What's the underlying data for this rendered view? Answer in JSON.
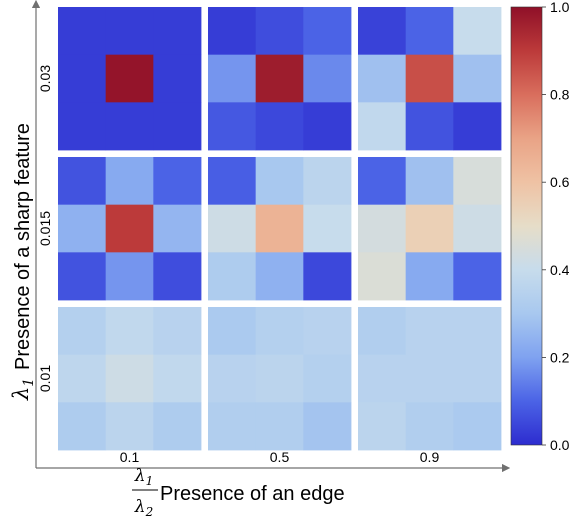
{
  "chart_data": {
    "type": "heatmap",
    "xlabel": "Presence of an edge",
    "xlabel_math": {
      "num": "λ1",
      "den": "λ2"
    },
    "ylabel": "Presence of a sharp feature",
    "ylabel_math": "λ1",
    "x_categories": [
      "0.1",
      "0.5",
      "0.9"
    ],
    "y_categories": [
      "0.03",
      "0.015",
      "0.01"
    ],
    "colorbar": {
      "range": [
        0.0,
        1.0
      ],
      "ticks": [
        "0.0",
        "0.2",
        "0.4",
        "0.6",
        "0.8",
        "1.0"
      ],
      "colormap": "coolwarm",
      "stops": [
        "#3b4cc0",
        "#5977e3",
        "#7b9ff9",
        "#9ebeff",
        "#c0d4f5",
        "#dddcdc",
        "#f2cbb7",
        "#f7ac8e",
        "#ee8468",
        "#d65244",
        "#b40426"
      ],
      "display_stops": [
        "#2d2ccf",
        "#4b63e6",
        "#7fa2f0",
        "#a8c8ef",
        "#c7dcec",
        "#e6ddc8",
        "#efc2a4",
        "#e9a386",
        "#d96e5d",
        "#bc3a3a",
        "#8f1028"
      ]
    },
    "grid": [
      [
        [
          [
            0.03,
            0.03,
            0.03
          ],
          [
            0.03,
            0.99,
            0.03
          ],
          [
            0.03,
            0.03,
            0.03
          ]
        ],
        [
          [
            0.03,
            0.06,
            0.1
          ],
          [
            0.18,
            0.97,
            0.16
          ],
          [
            0.08,
            0.05,
            0.03
          ]
        ],
        [
          [
            0.04,
            0.1,
            0.4
          ],
          [
            0.28,
            0.86,
            0.28
          ],
          [
            0.38,
            0.07,
            0.03
          ]
        ]
      ],
      [
        [
          [
            0.07,
            0.22,
            0.1
          ],
          [
            0.24,
            0.9,
            0.25
          ],
          [
            0.07,
            0.18,
            0.06
          ]
        ],
        [
          [
            0.09,
            0.3,
            0.36
          ],
          [
            0.42,
            0.65,
            0.4
          ],
          [
            0.32,
            0.24,
            0.05
          ]
        ],
        [
          [
            0.1,
            0.28,
            0.45
          ],
          [
            0.44,
            0.55,
            0.42
          ],
          [
            0.46,
            0.22,
            0.1
          ]
        ]
      ],
      [
        [
          [
            0.34,
            0.38,
            0.35
          ],
          [
            0.37,
            0.42,
            0.38
          ],
          [
            0.32,
            0.36,
            0.32
          ]
        ],
        [
          [
            0.31,
            0.34,
            0.35
          ],
          [
            0.35,
            0.36,
            0.34
          ],
          [
            0.33,
            0.33,
            0.29
          ]
        ],
        [
          [
            0.33,
            0.35,
            0.35
          ],
          [
            0.35,
            0.35,
            0.35
          ],
          [
            0.36,
            0.33,
            0.31
          ]
        ]
      ]
    ]
  }
}
